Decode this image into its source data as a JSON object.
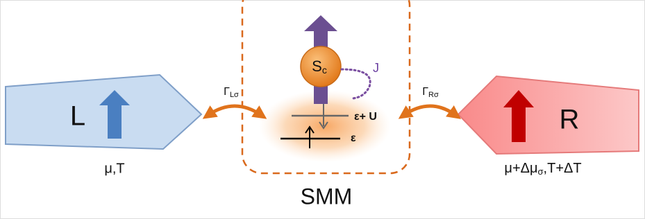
{
  "left_lead": {
    "label": "L",
    "params": "μ,T"
  },
  "right_lead": {
    "label": "R",
    "params": {
      "before": "μ+Δμ",
      "sub": "σ",
      "after": ",T+ΔT"
    }
  },
  "left_coupling": {
    "base": "Γ",
    "sub": "Lσ"
  },
  "right_coupling": {
    "base": "Γ",
    "sub": "Rσ"
  },
  "spin": {
    "base": "S",
    "sub": "c"
  },
  "exchange": "J",
  "levels": {
    "upper": "ε+ U",
    "lower": "ε"
  },
  "molecule": "SMM"
}
